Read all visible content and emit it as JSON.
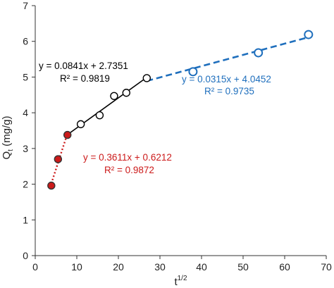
{
  "chart_data": {
    "type": "scatter",
    "xlabel": "t",
    "xlabel_sup": "1/2",
    "ylabel": "Q",
    "ylabel_sub": "t",
    "ylabel_unit": " (mg/g)",
    "xlim": [
      0,
      70
    ],
    "ylim": [
      0,
      7
    ],
    "x_ticks": [
      0,
      10,
      20,
      30,
      40,
      50,
      60,
      70
    ],
    "y_ticks": [
      0,
      1,
      2,
      3,
      4,
      5,
      6,
      7
    ],
    "grid": false,
    "legend": "none",
    "series": [
      {
        "color": "#cc1a1a",
        "marker": "filled-circle",
        "points": [
          {
            "x": 3.87,
            "y": 1.96
          },
          {
            "x": 5.48,
            "y": 2.7
          },
          {
            "x": 7.75,
            "y": 3.38
          }
        ],
        "fit": {
          "x_range": [
            3.87,
            7.75
          ],
          "slope": 0.3611,
          "intercept": 0.6212,
          "line_style": "dotted",
          "equation": "y = 0.3611x + 0.6212",
          "r2": "R² = 0.9872"
        }
      },
      {
        "color": "#000000",
        "marker": "open-circle",
        "points": [
          {
            "x": 10.95,
            "y": 3.68
          },
          {
            "x": 15.49,
            "y": 3.93
          },
          {
            "x": 18.97,
            "y": 4.47
          },
          {
            "x": 21.91,
            "y": 4.56
          },
          {
            "x": 26.83,
            "y": 4.97
          }
        ],
        "fit": {
          "x_range": [
            7.75,
            26.83
          ],
          "slope": 0.0841,
          "intercept": 2.7351,
          "line_style": "solid",
          "equation": "y = 0.0841x + 2.7351",
          "r2": "R² = 0.9819"
        }
      },
      {
        "color": "#1f6fbd",
        "marker": "open-circle",
        "points": [
          {
            "x": 37.95,
            "y": 5.15
          },
          {
            "x": 53.67,
            "y": 5.68
          },
          {
            "x": 65.73,
            "y": 6.19
          }
        ],
        "fit": {
          "x_range": [
            26.83,
            65.73
          ],
          "slope": 0.0315,
          "intercept": 4.0452,
          "line_style": "dashed",
          "equation": "y = 0.0315x + 4.0452",
          "r2": "R² = 0.9735"
        }
      }
    ]
  }
}
